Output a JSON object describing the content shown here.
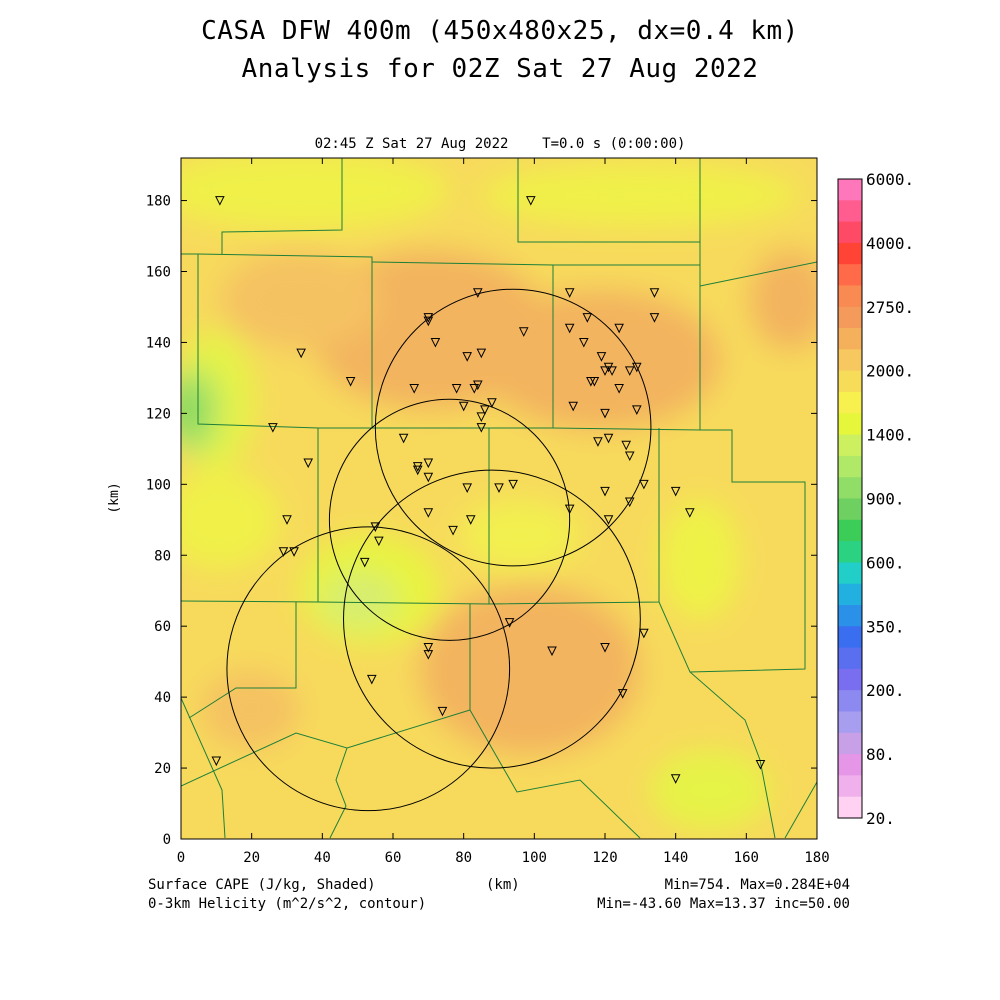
{
  "title": "CASA DFW 400m (450x480x25, dx=0.4 km)",
  "subtitle": "Analysis for 02Z Sat 27 Aug 2022",
  "time_label": "02:45 Z Sat 27 Aug 2022    T=0.0 s (0:00:00)",
  "footer": {
    "left_line1": "Surface CAPE (J/kg, Shaded)",
    "left_line2": "0-3km Helicity (m^2/s^2, contour)",
    "center": "(km)",
    "right_line1": "Min=754. Max=0.284E+04",
    "right_line2": "Min=-43.60 Max=13.37 inc=50.00"
  },
  "chart_data": {
    "type": "heatmap",
    "xlabel": "(km)",
    "ylabel": "(km)",
    "xlim": [
      0,
      180
    ],
    "ylim": [
      0,
      192
    ],
    "x_ticks": [
      0,
      20,
      40,
      60,
      80,
      100,
      120,
      140,
      160,
      180
    ],
    "y_ticks": [
      0,
      20,
      40,
      60,
      80,
      100,
      120,
      140,
      160,
      180
    ],
    "colorbar": {
      "labels": [
        "6000.",
        "4000.",
        "2750.",
        "2000.",
        "1400.",
        "900.",
        "600.",
        "350.",
        "200.",
        "80.",
        "20."
      ],
      "colors": [
        "#ff77bb",
        "#ff5c8f",
        "#ff4a66",
        "#ff4436",
        "#ff6a48",
        "#f88a52",
        "#f49a5a",
        "#f5b05c",
        "#f8c860",
        "#f7dc5a",
        "#f7f04e",
        "#e6f63a",
        "#ccf060",
        "#b0e868",
        "#90dd68",
        "#6dd060",
        "#3ccc58",
        "#2ad282",
        "#22cfc8",
        "#22b0e0",
        "#2a90e8",
        "#3a6ef0",
        "#5a6ef0",
        "#7a6ef0",
        "#8c8af0",
        "#a79ef0",
        "#c7a0e8",
        "#e596e6",
        "#f0b0ec",
        "#ffd2f4"
      ]
    },
    "cape_centers": [
      {
        "x": 68,
        "y": 143,
        "value": 2650
      },
      {
        "x": 105,
        "y": 47,
        "value": 2840
      },
      {
        "x": 120,
        "y": 128,
        "value": 2500
      },
      {
        "x": 178,
        "y": 150,
        "value": 2400
      },
      {
        "x": 5,
        "y": 118,
        "value": 900
      },
      {
        "x": 52,
        "y": 70,
        "value": 1300
      },
      {
        "x": 145,
        "y": 75,
        "value": 1500
      },
      {
        "x": 150,
        "y": 12,
        "value": 1450
      }
    ],
    "helicity_circles": [
      {
        "cx": 94,
        "cy": 116,
        "r": 39
      },
      {
        "cx": 76,
        "cy": 90,
        "r": 34
      },
      {
        "cx": 88,
        "cy": 62,
        "r": 42
      },
      {
        "cx": 53,
        "cy": 48,
        "r": 40
      }
    ],
    "stations": [
      [
        11,
        180
      ],
      [
        99,
        180
      ],
      [
        34,
        137
      ],
      [
        48,
        129
      ],
      [
        70,
        147
      ],
      [
        70,
        146
      ],
      [
        72,
        140
      ],
      [
        84,
        154
      ],
      [
        85,
        137
      ],
      [
        81,
        136
      ],
      [
        97,
        143
      ],
      [
        66,
        127
      ],
      [
        78,
        127
      ],
      [
        83,
        127
      ],
      [
        84,
        128
      ],
      [
        80,
        122
      ],
      [
        85,
        119
      ],
      [
        85,
        116
      ],
      [
        86,
        121
      ],
      [
        88,
        123
      ],
      [
        63,
        113
      ],
      [
        67,
        104
      ],
      [
        70,
        106
      ],
      [
        70,
        102
      ],
      [
        67,
        105
      ],
      [
        26,
        116
      ],
      [
        36,
        106
      ],
      [
        30,
        90
      ],
      [
        32,
        81
      ],
      [
        29,
        81
      ],
      [
        55,
        88
      ],
      [
        56,
        84
      ],
      [
        52,
        78
      ],
      [
        70,
        92
      ],
      [
        77,
        87
      ],
      [
        82,
        90
      ],
      [
        81,
        99
      ],
      [
        90,
        99
      ],
      [
        94,
        100
      ],
      [
        110,
        93
      ],
      [
        111,
        122
      ],
      [
        110,
        144
      ],
      [
        110,
        154
      ],
      [
        114,
        140
      ],
      [
        115,
        147
      ],
      [
        116,
        129
      ],
      [
        117,
        129
      ],
      [
        119,
        136
      ],
      [
        118,
        112
      ],
      [
        121,
        113
      ],
      [
        120,
        120
      ],
      [
        120,
        132
      ],
      [
        121,
        133
      ],
      [
        122,
        132
      ],
      [
        124,
        144
      ],
      [
        124,
        127
      ],
      [
        126,
        111
      ],
      [
        127,
        108
      ],
      [
        127,
        132
      ],
      [
        129,
        133
      ],
      [
        129,
        121
      ],
      [
        134,
        154
      ],
      [
        134,
        147
      ],
      [
        120,
        98
      ],
      [
        121,
        90
      ],
      [
        127,
        95
      ],
      [
        131,
        100
      ],
      [
        140,
        98
      ],
      [
        144,
        92
      ],
      [
        131,
        58
      ],
      [
        93,
        61
      ],
      [
        105,
        53
      ],
      [
        120,
        54
      ],
      [
        125,
        41
      ],
      [
        70,
        52
      ],
      [
        70,
        54
      ],
      [
        54,
        45
      ],
      [
        74,
        36
      ],
      [
        10,
        22
      ],
      [
        140,
        17
      ],
      [
        164,
        21
      ]
    ]
  }
}
